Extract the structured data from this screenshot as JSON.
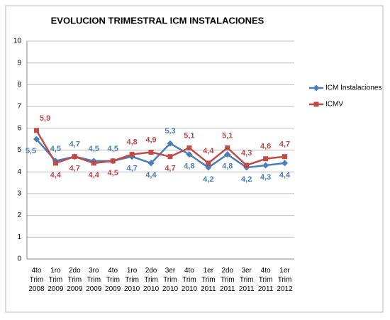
{
  "chart_data": {
    "type": "line",
    "title": "EVOLUCION TRIMESTRAL ICM INSTALACIONES",
    "categories": [
      "4to Trim 2008",
      "1ro Trim 2009",
      "2do Trim 2009",
      "3ro Trim 2009",
      "4to Trim 2009",
      "1ro Trim 2010",
      "2do Trim 2010",
      "3er Trim 2010",
      "4to Trim 2010",
      "1er Trim 2011",
      "2do Trim 2011",
      "3er Trim 2011",
      "4to Trim 2011",
      "1er Trim 2012"
    ],
    "series": [
      {
        "name": "ICM Instalaciones",
        "color": "#4a7ebb",
        "marker": "diamond",
        "values": [
          5.5,
          4.5,
          4.7,
          4.5,
          4.5,
          4.7,
          4.4,
          5.3,
          4.8,
          4.2,
          4.8,
          4.2,
          4.3,
          4.4
        ],
        "value_labels": [
          "5,5",
          "4,5",
          "4,7",
          "4,5",
          "4,5",
          "4,7",
          "4,4",
          "5,3",
          "4,8",
          "4,2",
          "4,8",
          "4,2",
          "4,3",
          "4,4"
        ]
      },
      {
        "name": "ICMV",
        "color": "#be4b48",
        "marker": "square",
        "values": [
          5.9,
          4.4,
          4.7,
          4.4,
          4.5,
          4.8,
          4.9,
          4.7,
          5.1,
          4.4,
          5.1,
          4.3,
          4.6,
          4.7
        ],
        "value_labels": [
          "5,9",
          "4,4",
          "4,7",
          "4,4",
          "4,5",
          "4,8",
          "4,9",
          "4,7",
          "5,1",
          "4,4",
          "5,1",
          "4,3",
          "4,6",
          "4,7"
        ]
      }
    ],
    "ylim": [
      0,
      10
    ],
    "yticks": [
      0,
      1,
      2,
      3,
      4,
      5,
      6,
      7,
      8,
      9,
      10
    ],
    "grid": true,
    "legend": "right"
  }
}
